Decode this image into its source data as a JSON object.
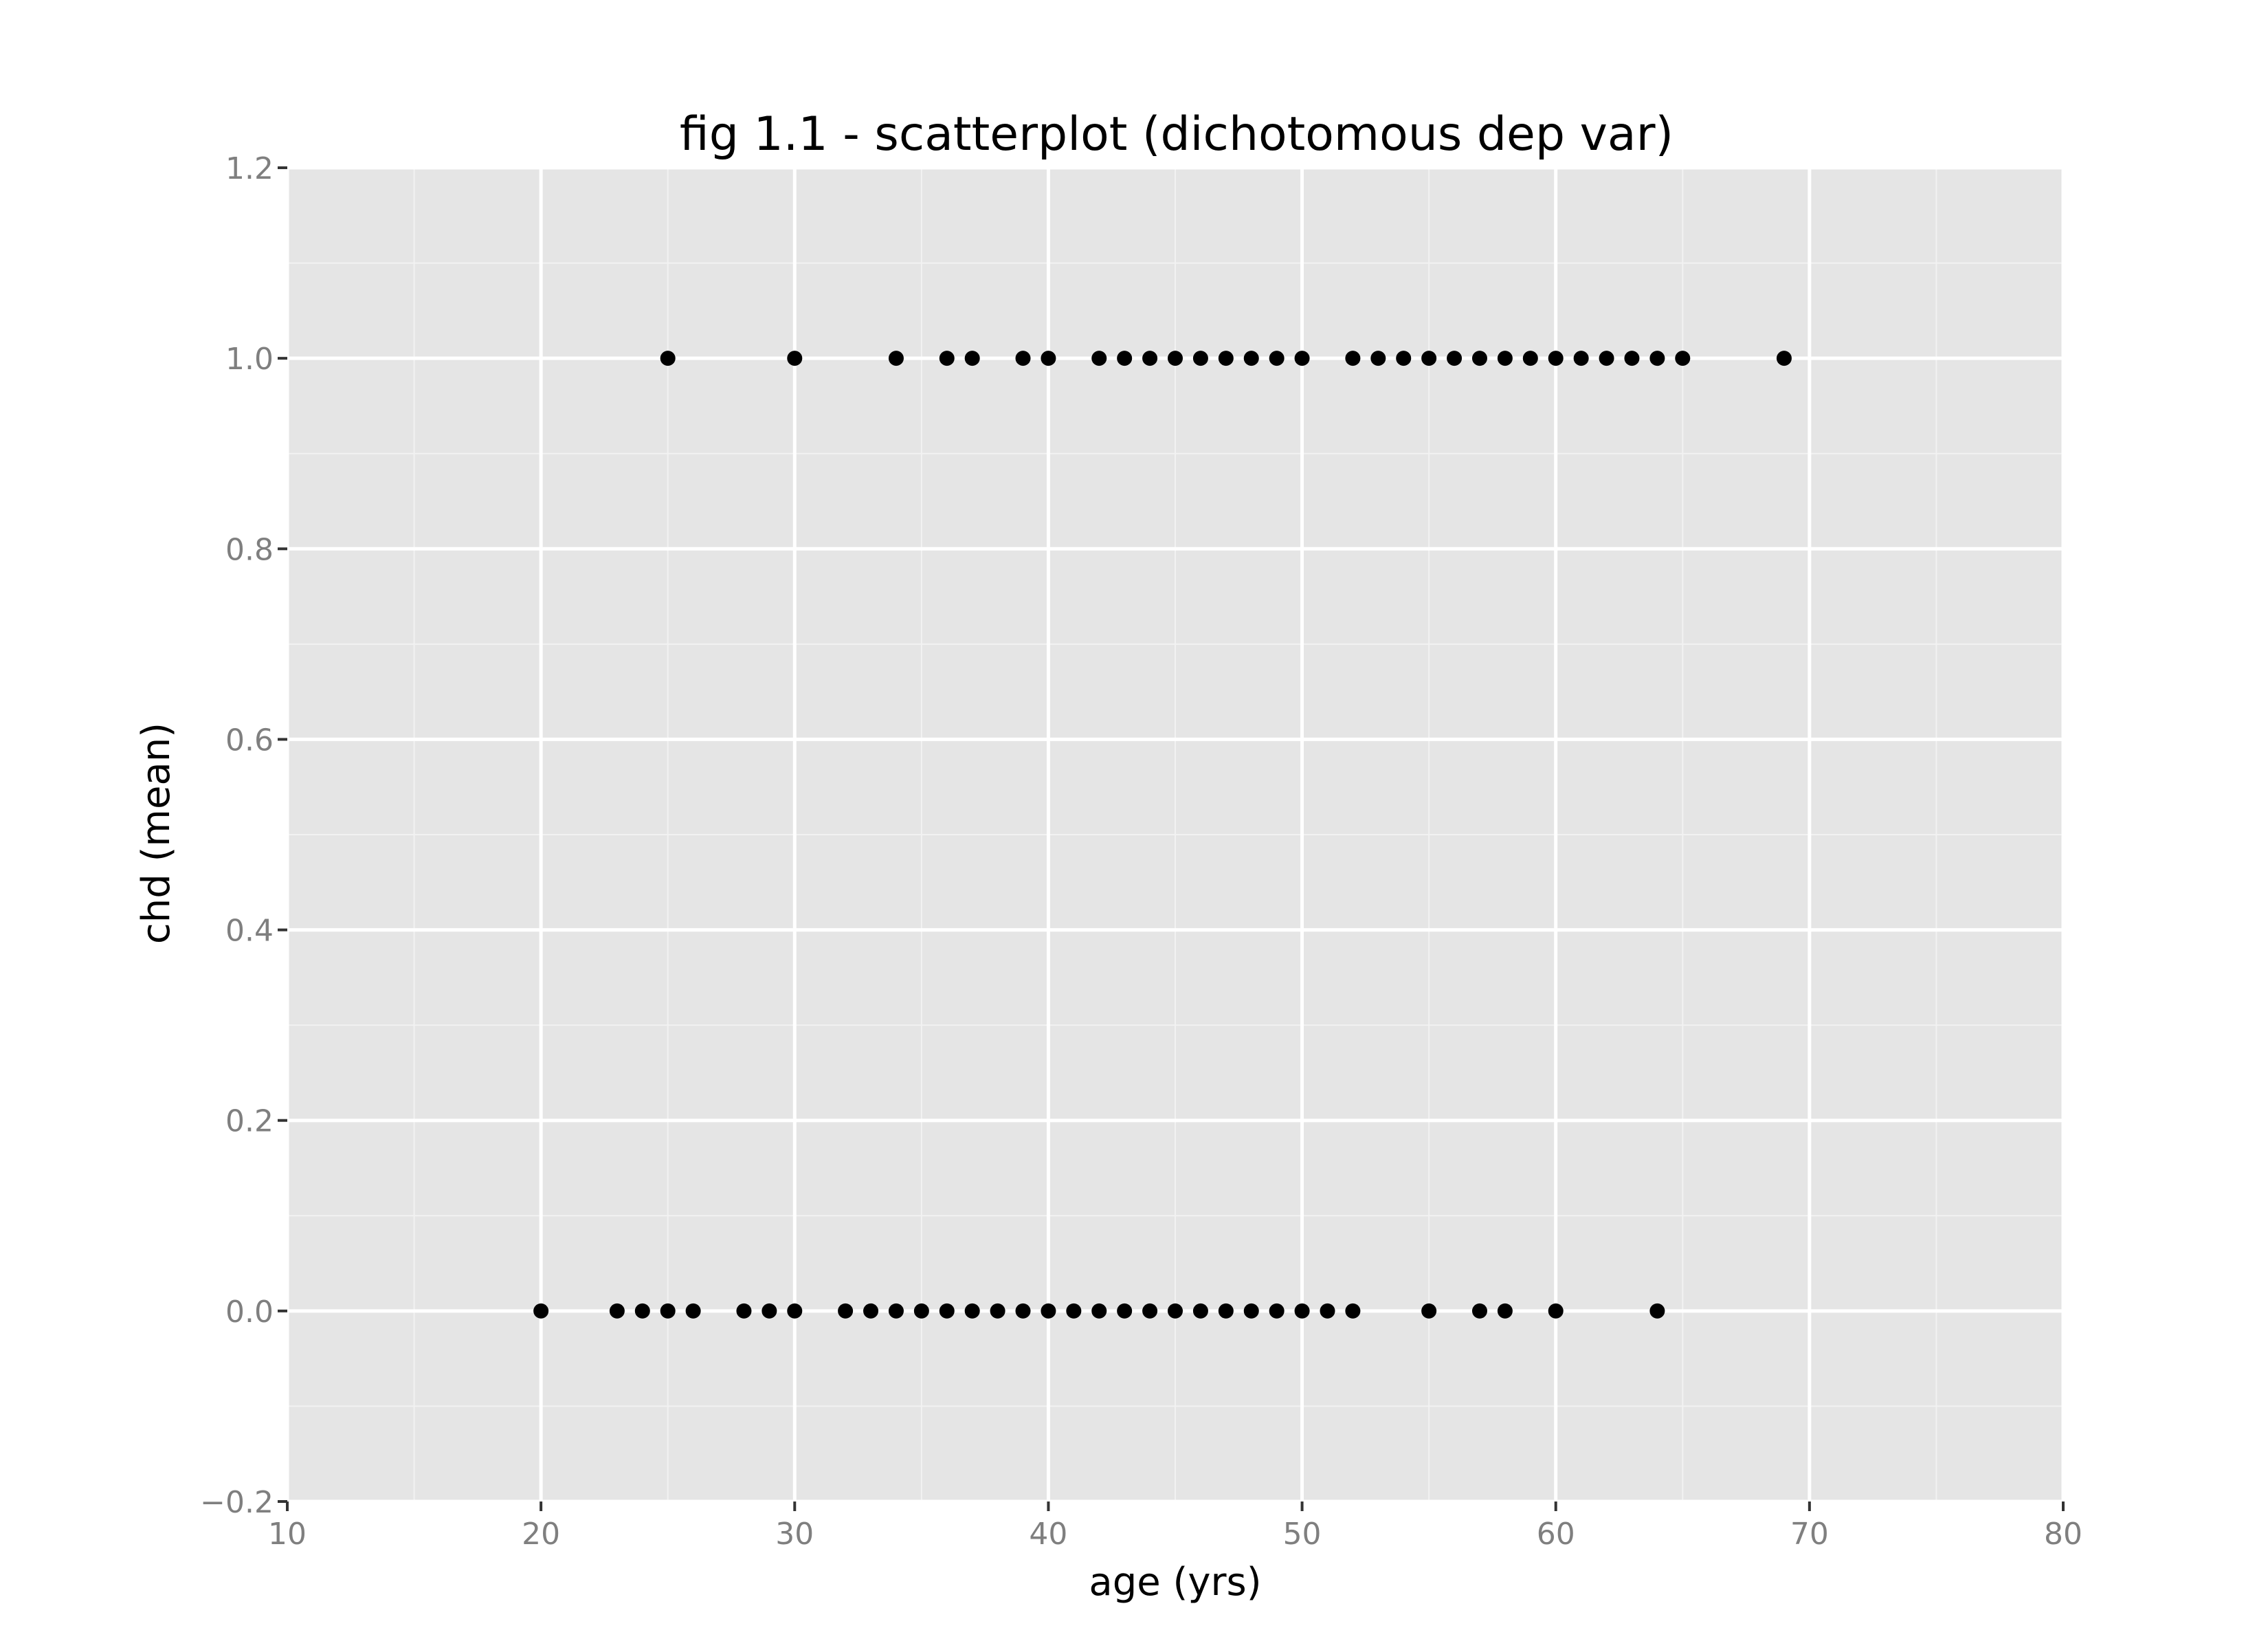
{
  "chart_data": {
    "type": "scatter",
    "title": "fig 1.1 - scatterplot (dichotomous dep var)",
    "xlabel": "age (yrs)",
    "ylabel": "chd (mean)",
    "xlim": [
      10,
      80
    ],
    "ylim": [
      -0.2,
      1.2
    ],
    "x_ticks": [
      10,
      20,
      30,
      40,
      50,
      60,
      70,
      80
    ],
    "x_tick_labels": [
      "10",
      "20",
      "30",
      "40",
      "50",
      "60",
      "70",
      "80"
    ],
    "y_ticks": [
      -0.2,
      0.0,
      0.2,
      0.4,
      0.6,
      0.8,
      1.0,
      1.2
    ],
    "y_tick_labels": [
      "−0.2",
      "0.0",
      "0.2",
      "0.4",
      "0.6",
      "0.8",
      "1.0",
      "1.2"
    ],
    "grid": true,
    "panel_color": "#e5e5e5",
    "grid_color": "#ffffff",
    "point_color": "#000000",
    "points": [
      {
        "x": 20,
        "y": 0
      },
      {
        "x": 23,
        "y": 0
      },
      {
        "x": 24,
        "y": 0
      },
      {
        "x": 25,
        "y": 0
      },
      {
        "x": 26,
        "y": 0
      },
      {
        "x": 28,
        "y": 0
      },
      {
        "x": 29,
        "y": 0
      },
      {
        "x": 30,
        "y": 0
      },
      {
        "x": 32,
        "y": 0
      },
      {
        "x": 33,
        "y": 0
      },
      {
        "x": 34,
        "y": 0
      },
      {
        "x": 35,
        "y": 0
      },
      {
        "x": 36,
        "y": 0
      },
      {
        "x": 37,
        "y": 0
      },
      {
        "x": 38,
        "y": 0
      },
      {
        "x": 39,
        "y": 0
      },
      {
        "x": 40,
        "y": 0
      },
      {
        "x": 41,
        "y": 0
      },
      {
        "x": 42,
        "y": 0
      },
      {
        "x": 43,
        "y": 0
      },
      {
        "x": 44,
        "y": 0
      },
      {
        "x": 45,
        "y": 0
      },
      {
        "x": 46,
        "y": 0
      },
      {
        "x": 47,
        "y": 0
      },
      {
        "x": 48,
        "y": 0
      },
      {
        "x": 49,
        "y": 0
      },
      {
        "x": 50,
        "y": 0
      },
      {
        "x": 51,
        "y": 0
      },
      {
        "x": 52,
        "y": 0
      },
      {
        "x": 55,
        "y": 0
      },
      {
        "x": 57,
        "y": 0
      },
      {
        "x": 58,
        "y": 0
      },
      {
        "x": 60,
        "y": 0
      },
      {
        "x": 64,
        "y": 0
      },
      {
        "x": 25,
        "y": 1
      },
      {
        "x": 30,
        "y": 1
      },
      {
        "x": 34,
        "y": 1
      },
      {
        "x": 36,
        "y": 1
      },
      {
        "x": 37,
        "y": 1
      },
      {
        "x": 39,
        "y": 1
      },
      {
        "x": 40,
        "y": 1
      },
      {
        "x": 42,
        "y": 1
      },
      {
        "x": 43,
        "y": 1
      },
      {
        "x": 44,
        "y": 1
      },
      {
        "x": 45,
        "y": 1
      },
      {
        "x": 46,
        "y": 1
      },
      {
        "x": 47,
        "y": 1
      },
      {
        "x": 48,
        "y": 1
      },
      {
        "x": 49,
        "y": 1
      },
      {
        "x": 50,
        "y": 1
      },
      {
        "x": 52,
        "y": 1
      },
      {
        "x": 53,
        "y": 1
      },
      {
        "x": 54,
        "y": 1
      },
      {
        "x": 55,
        "y": 1
      },
      {
        "x": 56,
        "y": 1
      },
      {
        "x": 57,
        "y": 1
      },
      {
        "x": 58,
        "y": 1
      },
      {
        "x": 59,
        "y": 1
      },
      {
        "x": 60,
        "y": 1
      },
      {
        "x": 61,
        "y": 1
      },
      {
        "x": 62,
        "y": 1
      },
      {
        "x": 63,
        "y": 1
      },
      {
        "x": 64,
        "y": 1
      },
      {
        "x": 65,
        "y": 1
      },
      {
        "x": 69,
        "y": 1
      }
    ]
  }
}
